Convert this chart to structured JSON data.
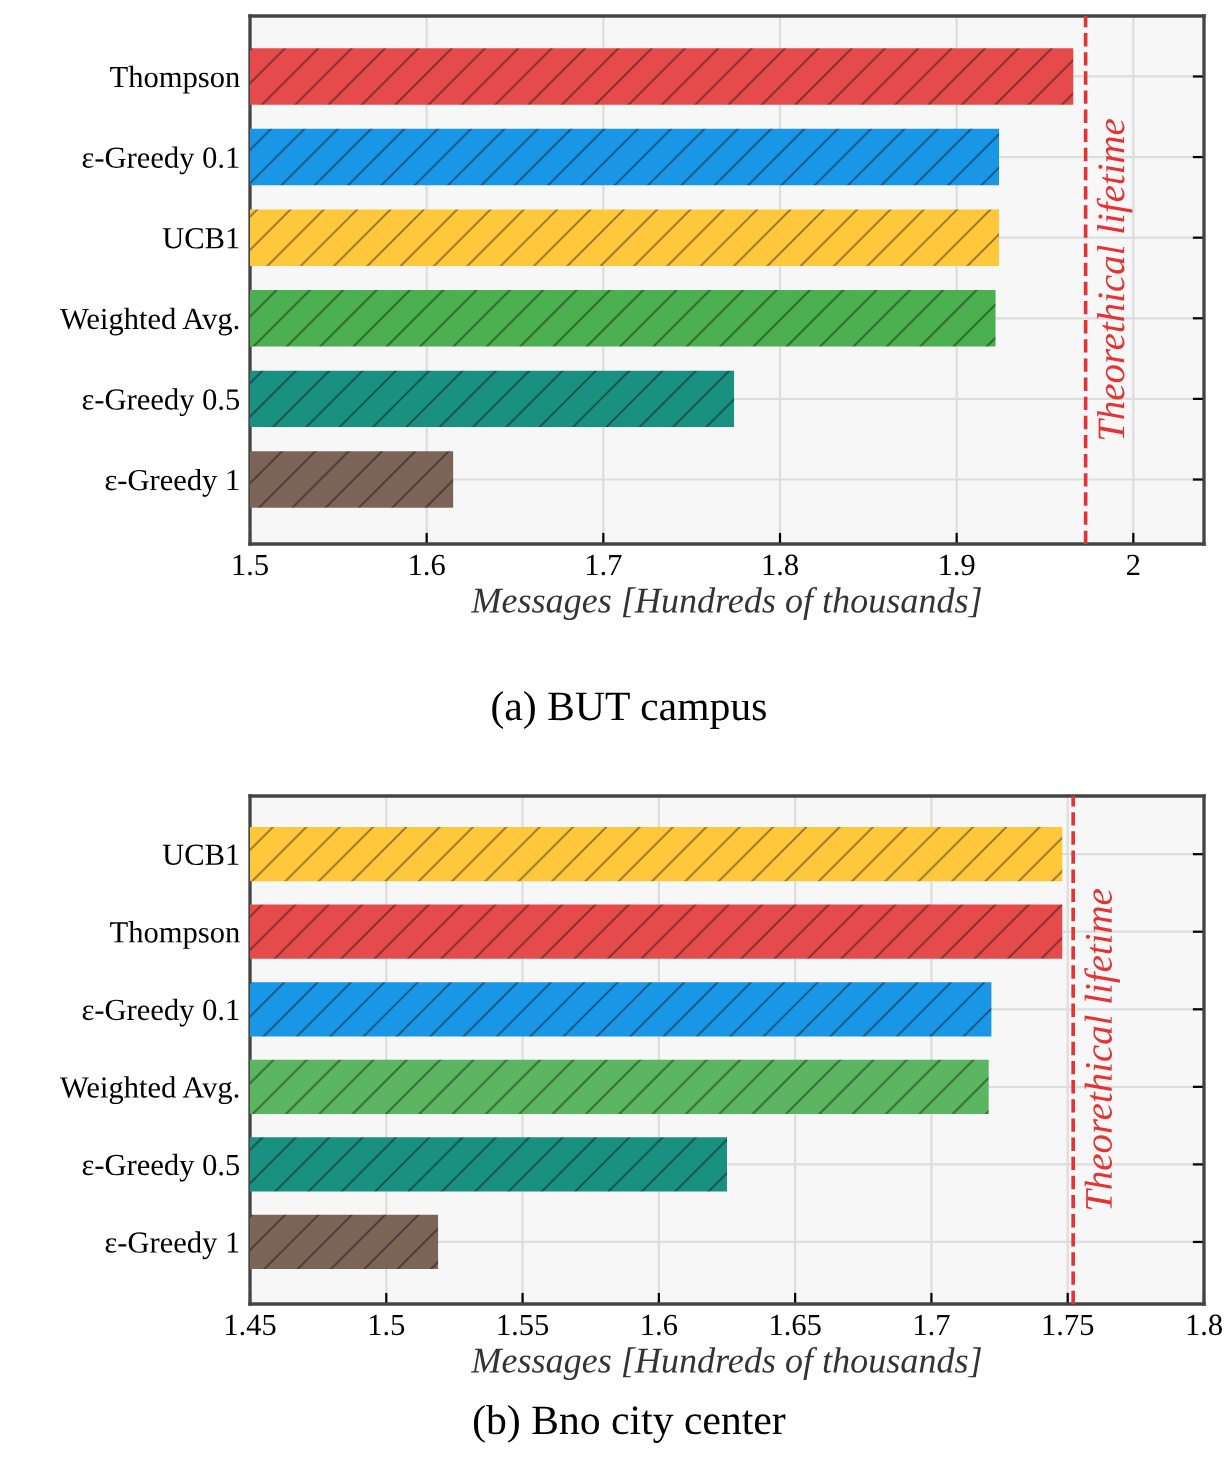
{
  "chart_data": [
    {
      "type": "bar",
      "orientation": "horizontal",
      "title": "(a) BUT campus",
      "xlabel": "Messages [Hundreds of thousands]",
      "categories": [
        "Thompson",
        "ε-Greedy 0.1",
        "UCB1",
        "Weighted Avg.",
        "ε-Greedy 0.5",
        "ε-Greedy 1"
      ],
      "values": [
        1.966,
        1.924,
        1.924,
        1.922,
        1.774,
        1.615
      ],
      "colors": [
        "#e64b4b",
        "#1a96e6",
        "#ffc83c",
        "#4caf50",
        "#1a9080",
        "#7d6459"
      ],
      "xlim": [
        1.5,
        2.04
      ],
      "xticks": [
        1.5,
        1.6,
        1.7,
        1.8,
        1.9,
        2
      ],
      "grid": true,
      "legend": false,
      "ref_lines": [
        {
          "axis": "x",
          "value": 1.973,
          "label": "Theorethical lifetime",
          "color": "#e63232",
          "line_style": "dashed"
        }
      ]
    },
    {
      "type": "bar",
      "orientation": "horizontal",
      "title": "(b) Bno city center",
      "xlabel": "Messages [Hundreds of thousands]",
      "categories": [
        "UCB1",
        "Thompson",
        "ε-Greedy 0.1",
        "Weighted Avg.",
        "ε-Greedy 0.5",
        "ε-Greedy 1"
      ],
      "values": [
        1.748,
        1.748,
        1.722,
        1.721,
        1.625,
        1.519
      ],
      "colors": [
        "#ffc83c",
        "#e64b4b",
        "#1a96e6",
        "#5cb560",
        "#1a9080",
        "#7d6459"
      ],
      "xlim": [
        1.45,
        1.8
      ],
      "xticks": [
        1.45,
        1.5,
        1.55,
        1.6,
        1.65,
        1.7,
        1.75,
        1.8
      ],
      "grid": true,
      "legend": false,
      "ref_lines": [
        {
          "axis": "x",
          "value": 1.752,
          "label": "Theorethical lifetime",
          "color": "#e63232",
          "line_style": "dashed"
        }
      ]
    }
  ]
}
